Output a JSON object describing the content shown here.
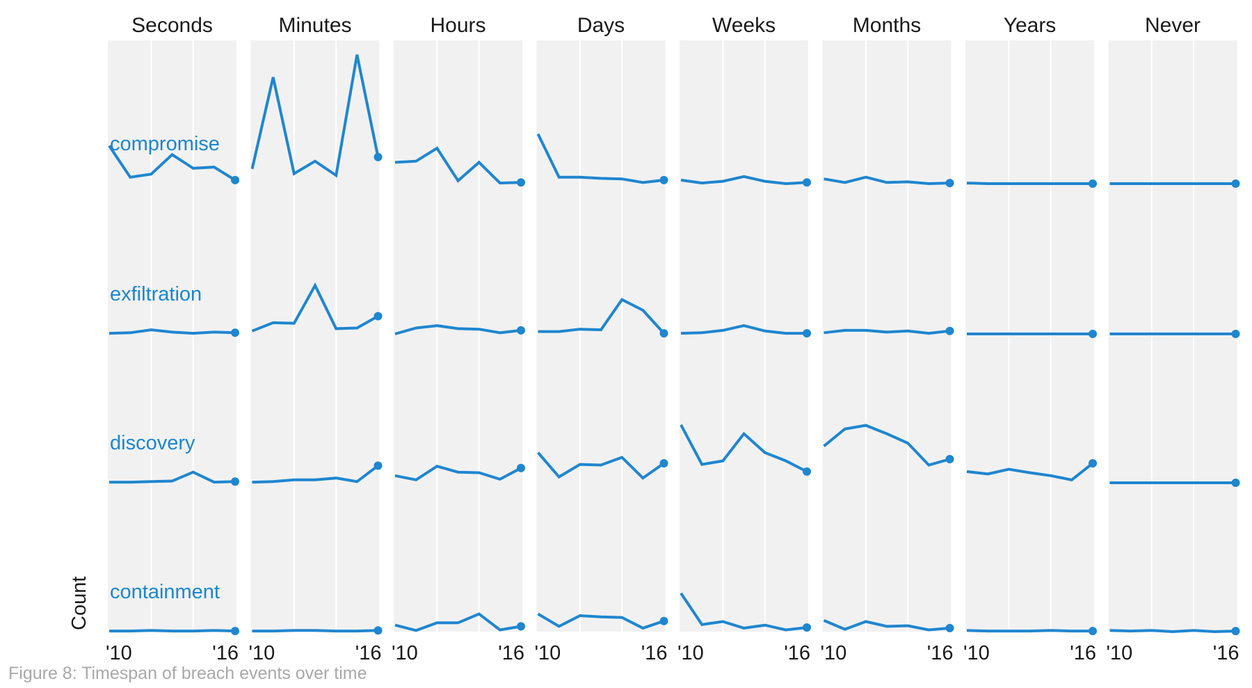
{
  "caption": "Figure 8: Timespan of breach events over time",
  "chart_data": {
    "type": "line",
    "facet_columns": [
      "Seconds",
      "Minutes",
      "Hours",
      "Days",
      "Weeks",
      "Months",
      "Years",
      "Never"
    ],
    "facet_rows": [
      "compromise",
      "exfiltration",
      "discovery",
      "containment"
    ],
    "x": [
      2010,
      2011,
      2012,
      2013,
      2014,
      2015,
      2016
    ],
    "x_tick_labels": [
      "'10",
      "'16"
    ],
    "ylabel": "Count",
    "grid": true,
    "line_color": "#1f86cf",
    "panel_background": "#f1f1f1",
    "series": {
      "compromise": {
        "Seconds": [
          64,
          11,
          16,
          49,
          26,
          28,
          6
        ],
        "Minutes": [
          25,
          180,
          17,
          38,
          14,
          218,
          45
        ],
        "Hours": [
          36,
          38,
          60,
          5,
          36,
          1,
          2
        ],
        "Days": [
          84,
          11,
          11,
          9,
          8,
          2,
          6
        ],
        "Weeks": [
          6,
          1,
          4,
          12,
          4,
          0,
          2
        ],
        "Months": [
          8,
          2,
          11,
          2,
          3,
          0,
          1
        ],
        "Years": [
          1,
          0,
          0,
          0,
          0,
          0,
          0
        ],
        "Never": [
          0,
          0,
          0,
          0,
          0,
          0,
          0
        ]
      },
      "exfiltration": {
        "Seconds": [
          1,
          2,
          7,
          3,
          1,
          3,
          2
        ],
        "Minutes": [
          5,
          19,
          18,
          82,
          9,
          10,
          30
        ],
        "Hours": [
          0,
          10,
          14,
          9,
          8,
          2,
          6
        ],
        "Days": [
          4,
          4,
          8,
          7,
          58,
          40,
          1
        ],
        "Weeks": [
          1,
          2,
          6,
          14,
          5,
          1,
          1
        ],
        "Months": [
          2,
          6,
          6,
          3,
          5,
          1,
          5
        ],
        "Years": [
          0,
          0,
          0,
          0,
          0,
          0,
          0
        ],
        "Never": [
          0,
          0,
          0,
          0,
          0,
          0,
          0
        ]
      },
      "discovery": {
        "Seconds": [
          1,
          1,
          2,
          3,
          18,
          1,
          2
        ],
        "Minutes": [
          1,
          2,
          5,
          5,
          8,
          2,
          29
        ],
        "Hours": [
          12,
          5,
          28,
          18,
          17,
          6,
          25
        ],
        "Days": [
          51,
          10,
          31,
          30,
          43,
          8,
          33
        ],
        "Weeks": [
          98,
          31,
          37,
          83,
          51,
          37,
          19
        ],
        "Months": [
          62,
          91,
          97,
          83,
          67,
          30,
          40
        ],
        "Years": [
          19,
          15,
          23,
          17,
          12,
          5,
          33
        ],
        "Never": [
          0,
          0,
          0,
          0,
          0,
          0,
          0
        ]
      },
      "containment": {
        "Seconds": [
          1,
          1,
          2,
          1,
          1,
          2,
          1
        ],
        "Minutes": [
          1,
          1,
          2,
          2,
          1,
          1,
          2
        ],
        "Hours": [
          11,
          2,
          15,
          15,
          30,
          3,
          9
        ],
        "Days": [
          30,
          9,
          27,
          25,
          24,
          6,
          18
        ],
        "Weeks": [
          65,
          12,
          17,
          6,
          11,
          3,
          7
        ],
        "Months": [
          19,
          4,
          17,
          9,
          10,
          3,
          6
        ],
        "Years": [
          2,
          1,
          1,
          1,
          2,
          1,
          1
        ],
        "Never": [
          2,
          1,
          2,
          0,
          2,
          0,
          1
        ]
      }
    }
  }
}
